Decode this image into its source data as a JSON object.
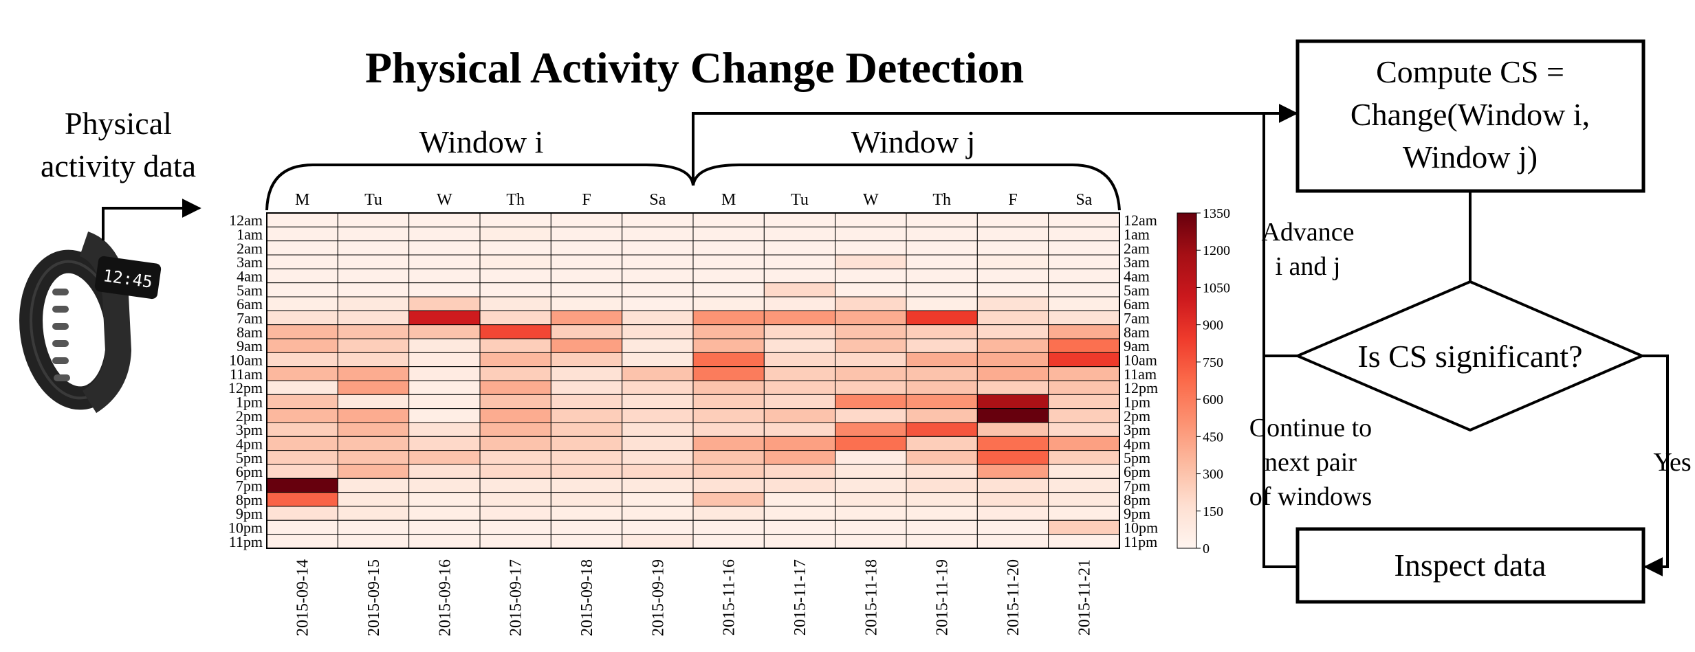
{
  "title": "Physical Activity Change Detection",
  "input_label_line1": "Physical",
  "input_label_line2": "activity data",
  "watch_time": "12:45",
  "window_i_label": "Window i",
  "window_j_label": "Window j",
  "day_abbrevs": [
    "M",
    "Tu",
    "W",
    "Th",
    "F",
    "Sa",
    "M",
    "Tu",
    "W",
    "Th",
    "F",
    "Sa"
  ],
  "flowchart": {
    "compute_line1": "Compute CS =",
    "compute_line2": "Change(Window i,",
    "compute_line3": "Window j)",
    "decision": "Is CS significant?",
    "inspect": "Inspect data",
    "advance_line1": "Advance",
    "advance_line2": "i and j",
    "continue_line1": "Continue to",
    "continue_line2": "next pair",
    "continue_line3": "of windows",
    "yes_label": "Yes"
  },
  "chart_data": {
    "type": "heatmap",
    "title": "",
    "x": [
      "2015-09-14",
      "2015-09-15",
      "2015-09-16",
      "2015-09-17",
      "2015-09-18",
      "2015-09-19",
      "2015-11-16",
      "2015-11-17",
      "2015-11-18",
      "2015-11-19",
      "2015-11-20",
      "2015-11-21"
    ],
    "y": [
      "12am",
      "1am",
      "2am",
      "3am",
      "4am",
      "5am",
      "6am",
      "7am",
      "8am",
      "9am",
      "10am",
      "11am",
      "12pm",
      "1pm",
      "2pm",
      "3pm",
      "4pm",
      "5pm",
      "6pm",
      "7pm",
      "8pm",
      "9pm",
      "10pm",
      "11pm"
    ],
    "values": [
      [
        40,
        40,
        40,
        40,
        40,
        40,
        40,
        40,
        40,
        40,
        40,
        40
      ],
      [
        40,
        40,
        40,
        60,
        40,
        40,
        40,
        40,
        40,
        40,
        40,
        40
      ],
      [
        40,
        40,
        40,
        40,
        40,
        40,
        40,
        40,
        40,
        40,
        40,
        40
      ],
      [
        40,
        40,
        40,
        60,
        40,
        40,
        40,
        40,
        150,
        40,
        60,
        40
      ],
      [
        40,
        40,
        40,
        40,
        40,
        40,
        40,
        40,
        40,
        40,
        40,
        40
      ],
      [
        40,
        40,
        40,
        40,
        40,
        40,
        40,
        200,
        40,
        40,
        40,
        40
      ],
      [
        60,
        100,
        250,
        100,
        60,
        40,
        60,
        80,
        200,
        60,
        150,
        60
      ],
      [
        150,
        150,
        1000,
        200,
        450,
        150,
        500,
        480,
        400,
        850,
        200,
        150
      ],
      [
        350,
        300,
        300,
        800,
        250,
        150,
        350,
        200,
        300,
        250,
        200,
        400
      ],
      [
        350,
        250,
        100,
        250,
        450,
        100,
        350,
        150,
        300,
        200,
        350,
        650
      ],
      [
        200,
        200,
        80,
        350,
        250,
        100,
        650,
        200,
        200,
        400,
        400,
        850
      ],
      [
        350,
        400,
        80,
        250,
        150,
        300,
        600,
        250,
        300,
        300,
        400,
        350
      ],
      [
        100,
        450,
        60,
        400,
        150,
        200,
        300,
        250,
        250,
        300,
        250,
        300
      ],
      [
        300,
        100,
        60,
        300,
        200,
        150,
        250,
        200,
        550,
        500,
        1150,
        250
      ],
      [
        350,
        400,
        60,
        400,
        250,
        200,
        250,
        300,
        200,
        300,
        1350,
        250
      ],
      [
        250,
        350,
        150,
        350,
        250,
        150,
        200,
        200,
        550,
        750,
        300,
        200
      ],
      [
        300,
        300,
        200,
        300,
        250,
        150,
        400,
        450,
        650,
        250,
        650,
        450
      ],
      [
        250,
        300,
        300,
        200,
        200,
        150,
        300,
        400,
        80,
        300,
        700,
        250
      ],
      [
        200,
        350,
        150,
        200,
        200,
        200,
        250,
        200,
        100,
        150,
        450,
        100
      ],
      [
        1350,
        100,
        100,
        100,
        100,
        100,
        150,
        150,
        100,
        150,
        150,
        100
      ],
      [
        700,
        100,
        60,
        100,
        100,
        60,
        300,
        60,
        100,
        100,
        150,
        100
      ],
      [
        150,
        100,
        60,
        80,
        60,
        60,
        100,
        60,
        60,
        60,
        80,
        60
      ],
      [
        40,
        40,
        40,
        40,
        40,
        40,
        40,
        40,
        40,
        40,
        40,
        250
      ],
      [
        40,
        40,
        40,
        40,
        40,
        80,
        40,
        40,
        40,
        40,
        40,
        40
      ]
    ],
    "colorbar_ticks": [
      0,
      150,
      300,
      450,
      600,
      750,
      900,
      1050,
      1200,
      1350
    ],
    "zlim": [
      0,
      1350
    ],
    "colormap": [
      "#fff5f0",
      "#fee0d2",
      "#fcbba1",
      "#fc9272",
      "#fb6a4a",
      "#ef3b2c",
      "#cb181d",
      "#a50f15",
      "#67000d"
    ]
  }
}
